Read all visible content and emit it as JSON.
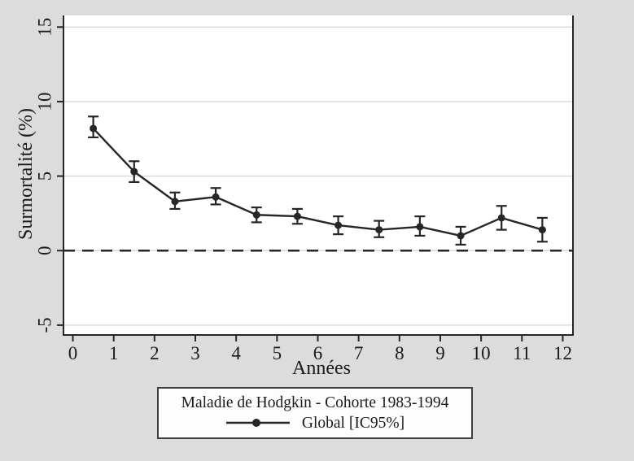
{
  "chart_data": {
    "type": "line",
    "title": "Maladie de Hodgkin - Cohorte 1983-1994",
    "xlabel": "Années",
    "ylabel": "Surmortalité (%)",
    "x": [
      0.5,
      1.5,
      2.5,
      3.5,
      4.5,
      5.5,
      6.5,
      7.5,
      8.5,
      9.5,
      10.5,
      11.5
    ],
    "series": [
      {
        "name": "Global [IC95%]",
        "values": [
          8.2,
          5.3,
          3.3,
          3.6,
          2.4,
          2.3,
          1.7,
          1.4,
          1.6,
          1.0,
          2.2,
          1.4
        ],
        "ci_low": [
          7.6,
          4.6,
          2.8,
          3.1,
          1.9,
          1.8,
          1.1,
          0.9,
          1.0,
          0.4,
          1.4,
          0.6
        ],
        "ci_high": [
          9.0,
          6.0,
          3.9,
          4.2,
          2.9,
          2.8,
          2.3,
          2.0,
          2.3,
          1.6,
          3.0,
          2.2
        ]
      }
    ],
    "xticks": [
      0,
      1,
      2,
      3,
      4,
      5,
      6,
      7,
      8,
      9,
      10,
      11,
      12
    ],
    "yticks": [
      -5,
      0,
      5,
      10,
      15
    ],
    "xlim": [
      -0.23,
      12.25
    ],
    "ylim": [
      -5.66,
      15.78
    ],
    "grid": "horizontal",
    "refline_y": 0,
    "marker": "filled-circle",
    "error_bars": true,
    "legend": {
      "position": "bottom",
      "title": "Maladie de Hodgkin - Cohorte 1983-1994",
      "entries": [
        {
          "label": "Global [IC95%]",
          "symbol": "line-with-circle-marker"
        }
      ]
    }
  },
  "colors": {
    "background": "#dcdcdc",
    "plot_background": "#ffffff",
    "grid": "#d8d8d8",
    "axis": "#262626",
    "series": "#262626",
    "text": "#1a1a1a",
    "legend_background": "#fdfdfd",
    "legend_border": "#3f3f3f"
  }
}
